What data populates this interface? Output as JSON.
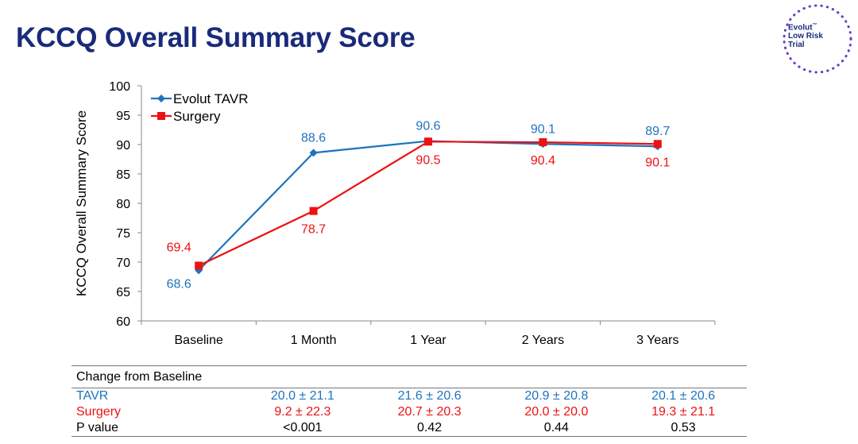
{
  "title": "KCCQ Overall Summary Score",
  "logo": {
    "line1": "Evolut",
    "tm": "™",
    "line2": "Low Risk",
    "line3": "Trial"
  },
  "colors": {
    "tavr": "#1e73be",
    "surgery": "#ee1111",
    "title": "#1a2a7a"
  },
  "chart_data": {
    "type": "line",
    "ylabel": "KCCQ Overall Summary Score",
    "xlabel": "",
    "ylim": [
      60,
      100
    ],
    "yticks": [
      60,
      65,
      70,
      75,
      80,
      85,
      90,
      95,
      100
    ],
    "categories": [
      "Baseline",
      "1 Month",
      "1 Year",
      "2 Years",
      "3 Years"
    ],
    "legend_position": "top-left",
    "grid": false,
    "series": [
      {
        "name": "Evolut TAVR",
        "color": "#1e73be",
        "marker": "diamond",
        "values": [
          68.6,
          88.6,
          90.6,
          90.1,
          89.7
        ],
        "labels": [
          "68.6",
          "88.6",
          "90.6",
          "90.1",
          "89.7"
        ]
      },
      {
        "name": "Surgery",
        "color": "#ee1111",
        "marker": "square",
        "values": [
          69.4,
          78.7,
          90.5,
          90.4,
          90.1
        ],
        "labels": [
          "69.4",
          "78.7",
          "90.5",
          "90.4",
          "90.1"
        ]
      }
    ]
  },
  "table": {
    "header": "Change from Baseline",
    "rows": [
      {
        "label": "TAVR",
        "values": [
          "20.0 ± 21.1",
          "21.6 ± 20.6",
          "20.9 ± 20.8",
          "20.1 ± 20.6"
        ]
      },
      {
        "label": "Surgery",
        "values": [
          "9.2 ± 22.3",
          "20.7 ± 20.3",
          "20.0 ± 20.0",
          "19.3 ± 21.1"
        ]
      },
      {
        "label": "P value",
        "values": [
          "<0.001",
          "0.42",
          "0.44",
          "0.53"
        ]
      }
    ]
  }
}
